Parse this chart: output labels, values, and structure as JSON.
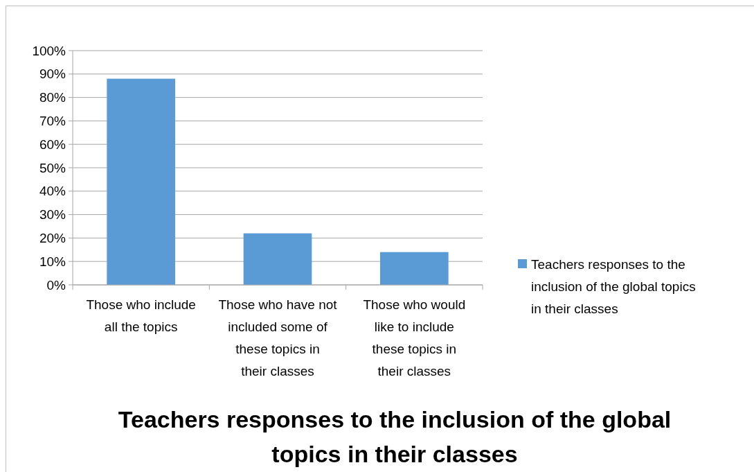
{
  "chart_data": {
    "type": "bar",
    "title": "Teachers responses to the inclusion of the global topics in their classes",
    "categories": [
      "Those who include all the topics",
      "Those who have not included some of these topics in their classes",
      "Those who would like to include these topics in their classes"
    ],
    "series": [
      {
        "name": "Teachers responses to the inclusion of the global topics in their classes",
        "color": "#5b9bd5",
        "values": [
          88,
          22,
          14
        ]
      }
    ],
    "ylim": [
      0,
      100
    ],
    "yticks": [
      {
        "value": 0,
        "label": "0%"
      },
      {
        "value": 10,
        "label": "10%"
      },
      {
        "value": 20,
        "label": "20%"
      },
      {
        "value": 30,
        "label": "30%"
      },
      {
        "value": 40,
        "label": "40%"
      },
      {
        "value": 50,
        "label": "50%"
      },
      {
        "value": 60,
        "label": "60%"
      },
      {
        "value": 70,
        "label": "70%"
      },
      {
        "value": 80,
        "label": "80%"
      },
      {
        "value": 90,
        "label": "90%"
      },
      {
        "value": 100,
        "label": "100%"
      }
    ],
    "grid": "y",
    "legend": "right"
  }
}
